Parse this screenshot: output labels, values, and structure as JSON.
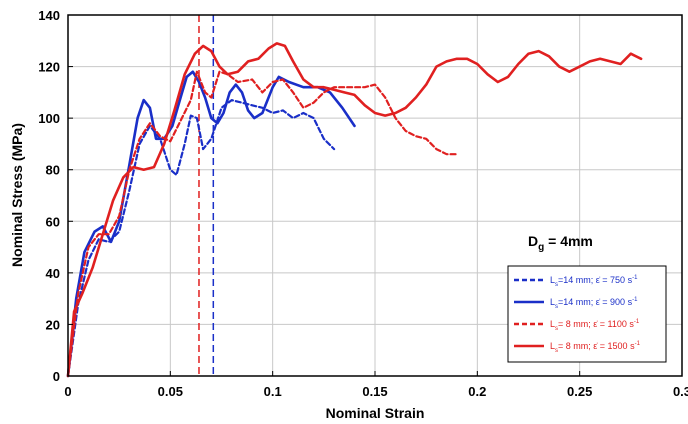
{
  "chart_data": {
    "type": "line",
    "xlabel": "Nominal Strain",
    "ylabel": "Nominal Stress (MPa)",
    "xlim": [
      0,
      0.3
    ],
    "ylim": [
      0,
      140
    ],
    "xticks": [
      "0",
      "0.05",
      "0.1",
      "0.15",
      "0.2",
      "0.25",
      "0.3"
    ],
    "yticks": [
      "0",
      "20",
      "40",
      "60",
      "80",
      "100",
      "120",
      "140"
    ],
    "annotation": {
      "main": "D",
      "sub": "g",
      "tail": " = 4mm"
    },
    "legend_position": "bottom-right",
    "vlines": [
      {
        "x": 0.064,
        "color": "#e02020",
        "style": "dashed"
      },
      {
        "x": 0.071,
        "color": "#1a2fc8",
        "style": "dashed"
      }
    ],
    "series": [
      {
        "name": {
          "pre": "L",
          "sub": "s",
          "post": "=14 mm; ε̇ = 750 s",
          "sup": "-1"
        },
        "color": "#1a2fc8",
        "style": "dashed",
        "points": [
          [
            0,
            0
          ],
          [
            0.005,
            28
          ],
          [
            0.01,
            45
          ],
          [
            0.015,
            53
          ],
          [
            0.02,
            52
          ],
          [
            0.025,
            56
          ],
          [
            0.03,
            72
          ],
          [
            0.035,
            90
          ],
          [
            0.04,
            97
          ],
          [
            0.045,
            92
          ],
          [
            0.05,
            80
          ],
          [
            0.053,
            78
          ],
          [
            0.057,
            90
          ],
          [
            0.06,
            101
          ],
          [
            0.063,
            100
          ],
          [
            0.066,
            88
          ],
          [
            0.07,
            92
          ],
          [
            0.075,
            104
          ],
          [
            0.08,
            107
          ],
          [
            0.085,
            106
          ],
          [
            0.09,
            105
          ],
          [
            0.095,
            104
          ],
          [
            0.1,
            102
          ],
          [
            0.105,
            103
          ],
          [
            0.11,
            100
          ],
          [
            0.115,
            102
          ],
          [
            0.12,
            100
          ],
          [
            0.125,
            92
          ],
          [
            0.13,
            88
          ]
        ]
      },
      {
        "name": {
          "pre": "L",
          "sub": "s",
          "post": "=14 mm; ε̇ = 900 s",
          "sup": "-1"
        },
        "color": "#1a2fc8",
        "style": "solid",
        "points": [
          [
            0,
            0
          ],
          [
            0.004,
            30
          ],
          [
            0.008,
            48
          ],
          [
            0.013,
            56
          ],
          [
            0.017,
            58
          ],
          [
            0.021,
            52
          ],
          [
            0.025,
            60
          ],
          [
            0.03,
            82
          ],
          [
            0.034,
            100
          ],
          [
            0.037,
            107
          ],
          [
            0.04,
            104
          ],
          [
            0.043,
            92
          ],
          [
            0.047,
            92
          ],
          [
            0.051,
            97
          ],
          [
            0.055,
            108
          ],
          [
            0.058,
            116
          ],
          [
            0.061,
            118
          ],
          [
            0.064,
            114
          ],
          [
            0.067,
            108
          ],
          [
            0.07,
            100
          ],
          [
            0.073,
            98
          ],
          [
            0.076,
            102
          ],
          [
            0.079,
            110
          ],
          [
            0.082,
            113
          ],
          [
            0.085,
            110
          ],
          [
            0.088,
            103
          ],
          [
            0.091,
            100
          ],
          [
            0.095,
            102
          ],
          [
            0.1,
            112
          ],
          [
            0.103,
            116
          ],
          [
            0.108,
            114
          ],
          [
            0.115,
            112
          ],
          [
            0.122,
            112
          ],
          [
            0.128,
            110
          ],
          [
            0.134,
            104
          ],
          [
            0.14,
            97
          ]
        ]
      },
      {
        "name": {
          "pre": "L",
          "sub": "s",
          "post": "= 8 mm; ε̇ = 1100 s",
          "sup": "-1"
        },
        "color": "#e02020",
        "style": "dashed",
        "points": [
          [
            0,
            0
          ],
          [
            0.005,
            32
          ],
          [
            0.01,
            50
          ],
          [
            0.015,
            55
          ],
          [
            0.02,
            55
          ],
          [
            0.025,
            62
          ],
          [
            0.03,
            80
          ],
          [
            0.035,
            92
          ],
          [
            0.04,
            98
          ],
          [
            0.045,
            93
          ],
          [
            0.05,
            91
          ],
          [
            0.055,
            99
          ],
          [
            0.06,
            107
          ],
          [
            0.063,
            118
          ],
          [
            0.067,
            110
          ],
          [
            0.07,
            108
          ],
          [
            0.074,
            118
          ],
          [
            0.078,
            117
          ],
          [
            0.083,
            114
          ],
          [
            0.09,
            115
          ],
          [
            0.095,
            110
          ],
          [
            0.1,
            114
          ],
          [
            0.105,
            115
          ],
          [
            0.11,
            110
          ],
          [
            0.115,
            104
          ],
          [
            0.12,
            106
          ],
          [
            0.125,
            110
          ],
          [
            0.13,
            112
          ],
          [
            0.14,
            112
          ],
          [
            0.145,
            112
          ],
          [
            0.15,
            113
          ],
          [
            0.155,
            108
          ],
          [
            0.16,
            100
          ],
          [
            0.165,
            95
          ],
          [
            0.17,
            93
          ],
          [
            0.175,
            92
          ],
          [
            0.18,
            88
          ],
          [
            0.185,
            86
          ],
          [
            0.19,
            86
          ]
        ]
      },
      {
        "name": {
          "pre": "L",
          "sub": "s",
          "post": "= 8 mm; ε̇ = 1500 s",
          "sup": "-1"
        },
        "color": "#e02020",
        "style": "solid",
        "points": [
          [
            0,
            0
          ],
          [
            0.003,
            25
          ],
          [
            0.007,
            32
          ],
          [
            0.012,
            42
          ],
          [
            0.017,
            55
          ],
          [
            0.022,
            68
          ],
          [
            0.027,
            77
          ],
          [
            0.032,
            81
          ],
          [
            0.037,
            80
          ],
          [
            0.042,
            81
          ],
          [
            0.047,
            90
          ],
          [
            0.052,
            103
          ],
          [
            0.057,
            117
          ],
          [
            0.062,
            125
          ],
          [
            0.066,
            128
          ],
          [
            0.07,
            126
          ],
          [
            0.074,
            120
          ],
          [
            0.078,
            117
          ],
          [
            0.083,
            118
          ],
          [
            0.088,
            122
          ],
          [
            0.093,
            123
          ],
          [
            0.098,
            127
          ],
          [
            0.102,
            129
          ],
          [
            0.106,
            128
          ],
          [
            0.11,
            122
          ],
          [
            0.115,
            115
          ],
          [
            0.12,
            112
          ],
          [
            0.125,
            112
          ],
          [
            0.13,
            111
          ],
          [
            0.135,
            110
          ],
          [
            0.14,
            109
          ],
          [
            0.145,
            105
          ],
          [
            0.15,
            102
          ],
          [
            0.155,
            101
          ],
          [
            0.16,
            102
          ],
          [
            0.165,
            104
          ],
          [
            0.17,
            108
          ],
          [
            0.175,
            113
          ],
          [
            0.18,
            120
          ],
          [
            0.185,
            122
          ],
          [
            0.19,
            123
          ],
          [
            0.195,
            123
          ],
          [
            0.2,
            121
          ],
          [
            0.205,
            117
          ],
          [
            0.21,
            114
          ],
          [
            0.215,
            116
          ],
          [
            0.22,
            121
          ],
          [
            0.225,
            125
          ],
          [
            0.23,
            126
          ],
          [
            0.235,
            124
          ],
          [
            0.24,
            120
          ],
          [
            0.245,
            118
          ],
          [
            0.25,
            120
          ],
          [
            0.255,
            122
          ],
          [
            0.26,
            123
          ],
          [
            0.265,
            122
          ],
          [
            0.27,
            121
          ],
          [
            0.275,
            125
          ],
          [
            0.28,
            123
          ]
        ]
      }
    ]
  }
}
